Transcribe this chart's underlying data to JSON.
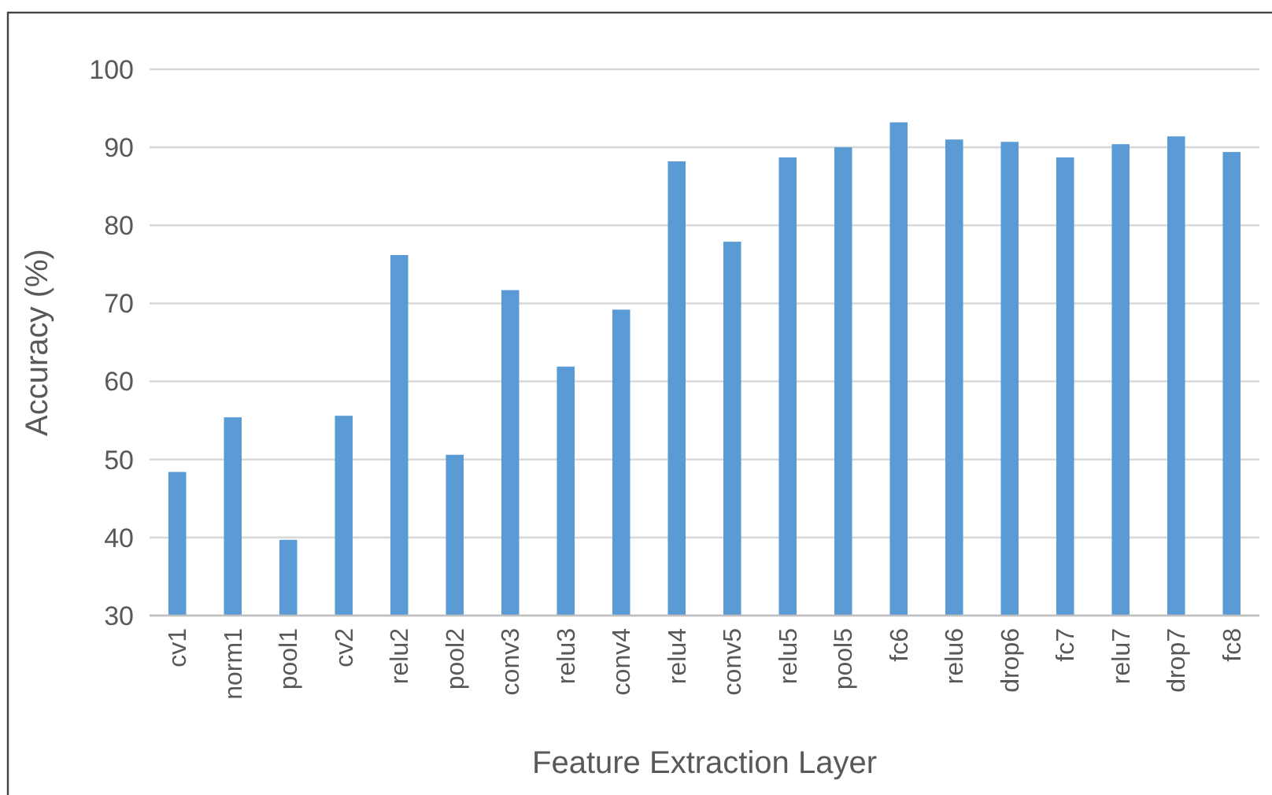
{
  "chart_data": {
    "type": "bar",
    "xlabel": "Feature Extraction Layer",
    "ylabel": "Accuracy (%)",
    "categories": [
      "cv1",
      "norm1",
      "pool1",
      "cv2",
      "relu2",
      "pool2",
      "conv3",
      "relu3",
      "conv4",
      "relu4",
      "conv5",
      "relu5",
      "pool5",
      "fc6",
      "relu6",
      "drop6",
      "fc7",
      "relu7",
      "drop7",
      "fc8"
    ],
    "values": [
      48.4,
      55.4,
      39.7,
      55.6,
      76.2,
      50.6,
      71.7,
      61.9,
      69.2,
      88.2,
      77.9,
      88.7,
      90.0,
      93.2,
      91.0,
      90.7,
      88.7,
      90.4,
      91.4,
      89.4
    ],
    "color": "#5b9bd5",
    "ylim": [
      30,
      100
    ],
    "yticks": [
      30,
      40,
      50,
      60,
      70,
      80,
      90,
      100
    ],
    "grid": "y"
  }
}
